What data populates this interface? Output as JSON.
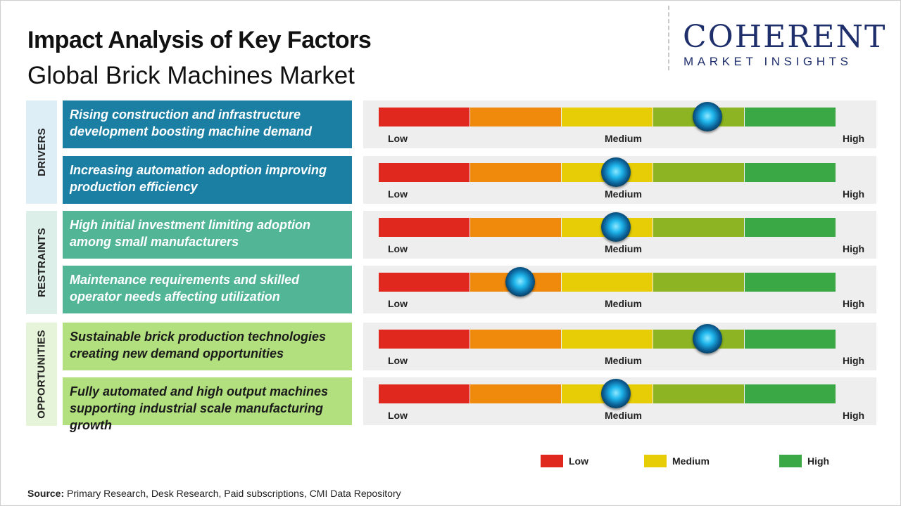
{
  "title": "Impact Analysis of Key Factors",
  "subtitle": "Global Brick Machines Market",
  "logo": {
    "line1": "COHERENT",
    "line2": "MARKET INSIGHTS"
  },
  "colors": {
    "drivers": "#1b7ea3",
    "drivers_tab": "#ddeef7",
    "restraints": "#52b596",
    "restraints_tab": "#dcefe9",
    "opportunities": "#b3e07f",
    "opportunities_tab": "#e6f4d9",
    "scale": [
      "#e0281f",
      "#f08a0c",
      "#e6cd06",
      "#8cb423",
      "#3aa845"
    ]
  },
  "scale_labels": {
    "low": "Low",
    "medium": "Medium",
    "high": "High"
  },
  "legend": [
    {
      "label": "Low",
      "color": "#e0281f"
    },
    {
      "label": "Medium",
      "color": "#e6cd06"
    },
    {
      "label": "High",
      "color": "#3aa845"
    }
  ],
  "source": {
    "label": "Source:",
    "text": " Primary Research, Desk Research, Paid subscriptions, CMI Data Repository"
  },
  "chart_data": {
    "type": "table",
    "scale": [
      "Low",
      "Medium",
      "High"
    ],
    "categories": [
      {
        "name": "DRIVERS",
        "factors": [
          {
            "text": "Rising construction and infrastructure development boosting machine demand",
            "impact": 0.72
          },
          {
            "text": "Increasing automation adoption improving production efficiency",
            "impact": 0.52
          }
        ]
      },
      {
        "name": "RESTRAINTS",
        "factors": [
          {
            "text": "High initial investment limiting adoption among small manufacturers",
            "impact": 0.52
          },
          {
            "text": "Maintenance requirements and skilled operator needs affecting utilization",
            "impact": 0.31
          }
        ]
      },
      {
        "name": "OPPORTUNITIES",
        "factors": [
          {
            "text": "Sustainable brick production technologies creating new demand opportunities",
            "impact": 0.72
          },
          {
            "text": "Fully automated and high output machines supporting industrial scale manufacturing growth",
            "impact": 0.52
          }
        ]
      }
    ]
  }
}
